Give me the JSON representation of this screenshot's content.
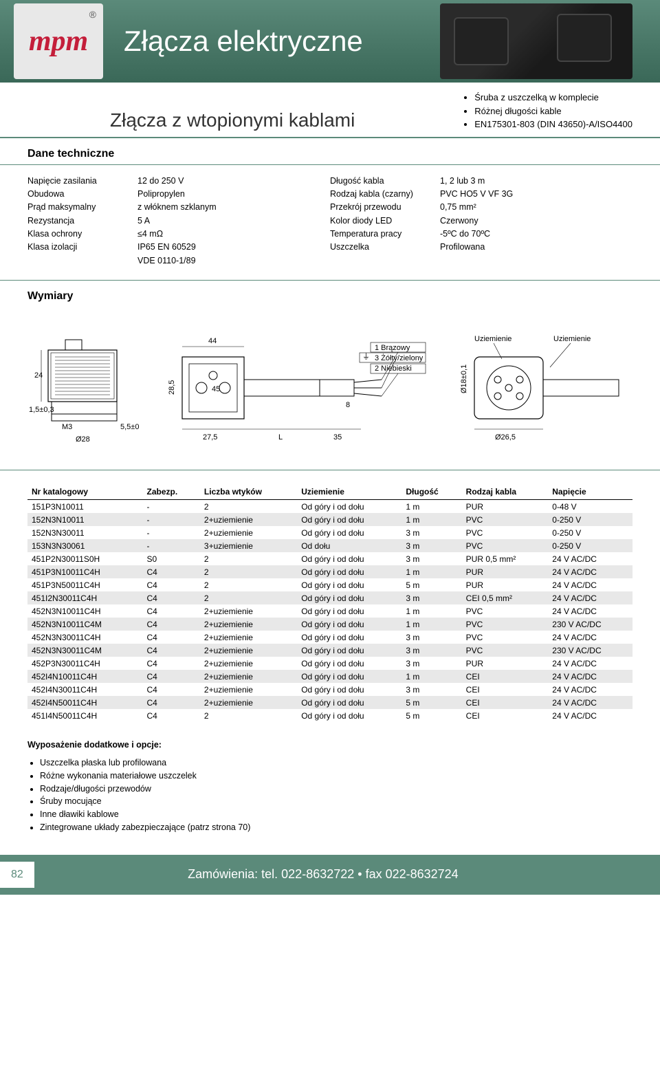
{
  "header": {
    "logo_text": "mpm",
    "title": "Złącza elektryczne"
  },
  "subtitle": "Złącza z wtopionymi kablami",
  "features": [
    "Śruba z uszczelką w komplecie",
    "Różnej długości kable",
    "EN175301-803 (DIN 43650)-A/ISO4400"
  ],
  "tech_section_title": "Dane techniczne",
  "tech_left": [
    {
      "label": "Napięcie zasilania",
      "value": "12 do 250 V"
    },
    {
      "label": "Obudowa",
      "value": "Polipropylen"
    },
    {
      "label": "",
      "value": "z włóknem szklanym"
    },
    {
      "label": "Prąd maksymalny",
      "value": "5 A"
    },
    {
      "label": "Rezystancja",
      "value": "≤4 mΩ"
    },
    {
      "label": "Klasa ochrony",
      "value": "IP65 EN 60529"
    },
    {
      "label": "Klasa izolacji",
      "value": "VDE 0110-1/89"
    }
  ],
  "tech_right": [
    {
      "label": "Długość kabla",
      "value": "1, 2 lub 3 m"
    },
    {
      "label": "Rodzaj kabla (czarny)",
      "value": "PVC HO5 V VF 3G"
    },
    {
      "label": "Przekrój przewodu",
      "value": "0,75 mm²"
    },
    {
      "label": "Kolor diody LED",
      "value": "Czerwony"
    },
    {
      "label": "Temperatura pracy",
      "value": "-5ºC do 70ºC"
    },
    {
      "label": "Uszczelka",
      "value": "Profilowana"
    }
  ],
  "dims_title": "Wymiary",
  "drawing_labels": {
    "a": "24",
    "b": "1,5±0,3",
    "c": "M3",
    "d": "Ø28",
    "e": "5,5±0",
    "f": "44",
    "g": "28,5",
    "h": "45",
    "i": "27,5",
    "j": "L",
    "k": "8",
    "l": "35",
    "wire1": "1 Brązowy",
    "wire2": "3 Żółty/zielony",
    "wire3": "2 Niebieski",
    "wire_sym": "⏚",
    "uz1": "Uziemienie",
    "uz2": "Uziemienie",
    "m": "Ø18±0,1",
    "n": "Ø26,5"
  },
  "table": {
    "columns": [
      "Nr katalogowy",
      "Zabezp.",
      "Liczba wtyków",
      "Uziemienie",
      "Długość",
      "Rodzaj kabla",
      "Napięcie"
    ],
    "rows": [
      [
        "151P3N10011",
        "-",
        "2",
        "Od góry i od dołu",
        "1 m",
        "PUR",
        "0-48 V"
      ],
      [
        "152N3N10011",
        "-",
        "2+uziemienie",
        "Od góry i od dołu",
        "1 m",
        "PVC",
        "0-250 V"
      ],
      [
        "152N3N30011",
        "-",
        "2+uziemienie",
        "Od góry i od dołu",
        "3 m",
        "PVC",
        "0-250 V"
      ],
      [
        "153N3N30061",
        "-",
        "3+uziemienie",
        "Od dołu",
        "3 m",
        "PVC",
        "0-250 V"
      ],
      [
        "451P2N30011S0H",
        "S0",
        "2",
        "Od góry i od dołu",
        "3 m",
        "PUR 0,5 mm²",
        "24 V AC/DC"
      ],
      [
        "451P3N10011C4H",
        "C4",
        "2",
        "Od góry i od dołu",
        "1 m",
        "PUR",
        "24 V AC/DC"
      ],
      [
        "451P3N50011C4H",
        "C4",
        "2",
        "Od góry i od dołu",
        "5 m",
        "PUR",
        "24 V AC/DC"
      ],
      [
        "451I2N30011C4H",
        "C4",
        "2",
        "Od góry i od dołu",
        "3 m",
        "CEI 0,5 mm²",
        "24 V AC/DC"
      ],
      [
        "452N3N10011C4H",
        "C4",
        "2+uziemienie",
        "Od góry i od dołu",
        "1 m",
        "PVC",
        "24 V AC/DC"
      ],
      [
        "452N3N10011C4M",
        "C4",
        "2+uziemienie",
        "Od góry i od dołu",
        "1 m",
        "PVC",
        "230 V AC/DC"
      ],
      [
        "452N3N30011C4H",
        "C4",
        "2+uziemienie",
        "Od góry i od dołu",
        "3 m",
        "PVC",
        "24 V AC/DC"
      ],
      [
        "452N3N30011C4M",
        "C4",
        "2+uziemienie",
        "Od góry i od dołu",
        "3 m",
        "PVC",
        "230 V AC/DC"
      ],
      [
        "452P3N30011C4H",
        "C4",
        "2+uziemienie",
        "Od góry i od dołu",
        "3 m",
        "PUR",
        "24 V AC/DC"
      ],
      [
        "452I4N10011C4H",
        "C4",
        "2+uziemienie",
        "Od góry i od dołu",
        "1 m",
        "CEI",
        "24 V AC/DC"
      ],
      [
        "452I4N30011C4H",
        "C4",
        "2+uziemienie",
        "Od góry i od dołu",
        "3 m",
        "CEI",
        "24 V AC/DC"
      ],
      [
        "452I4N50011C4H",
        "C4",
        "2+uziemienie",
        "Od góry i od dołu",
        "5 m",
        "CEI",
        "24 V AC/DC"
      ],
      [
        "451I4N50011C4H",
        "C4",
        "2",
        "Od góry i od dołu",
        "5 m",
        "CEI",
        "24 V AC/DC"
      ]
    ],
    "alt_rows": [
      1,
      3,
      5,
      7,
      9,
      11,
      13,
      15
    ]
  },
  "options": {
    "title": "Wyposażenie dodatkowe i opcje:",
    "items": [
      "Uszczelka płaska lub profilowana",
      "Różne wykonania materiałowe uszczelek",
      "Rodzaje/długości przewodów",
      "Śruby mocujące",
      "Inne dławiki kablowe",
      "Zintegrowane układy zabezpieczające (patrz strona 70)"
    ]
  },
  "footer": {
    "page": "82",
    "contact": "Zamówienia: tel. 022-8632722 • fax 022-8632724"
  },
  "colors": {
    "band": "#5b8a7a",
    "logo_red": "#c41e3a",
    "grey_row": "#e8e8e8"
  }
}
